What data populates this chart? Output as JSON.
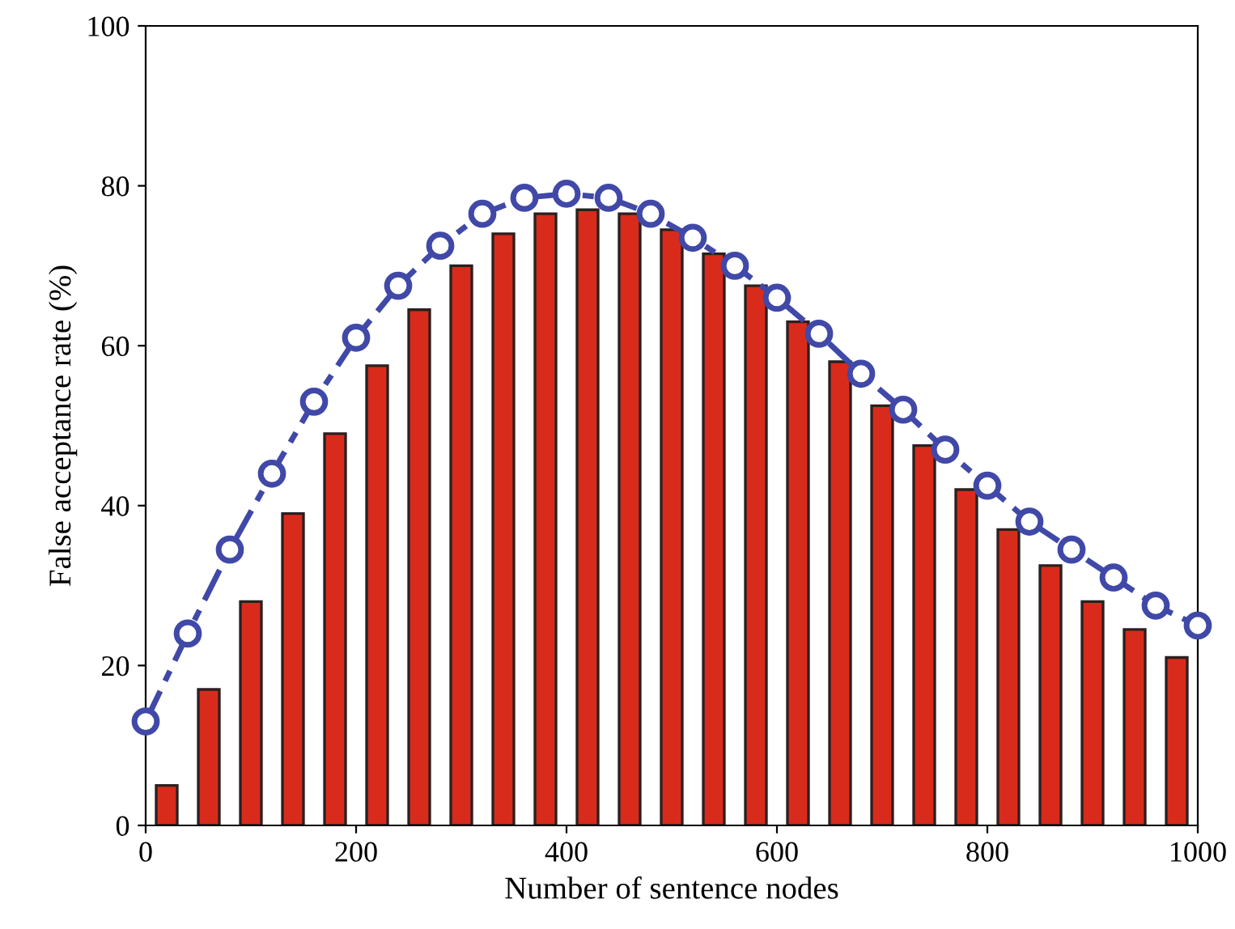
{
  "chart_data": {
    "type": "bar",
    "xlabel": "Number of sentence nodes",
    "ylabel": "False acceptance rate (%)",
    "xlim": [
      0,
      1000
    ],
    "xticks": [
      0,
      200,
      400,
      600,
      800,
      1000
    ],
    "ylim": [
      0,
      100
    ],
    "yticks": [
      0,
      20,
      40,
      60,
      80,
      100
    ],
    "grid": false,
    "legend": false,
    "series": [
      {
        "color": "#d92b1c",
        "x": [
          20,
          60,
          100,
          140,
          180,
          220,
          260,
          300,
          340,
          380,
          420,
          460,
          500,
          540,
          580,
          620,
          660,
          700,
          740,
          780,
          820,
          860,
          900,
          940,
          980
        ],
        "values": [
          5,
          17,
          28,
          39,
          49,
          57.5,
          64.5,
          70,
          74,
          76.5,
          77,
          76.5,
          74.5,
          71.5,
          67.5,
          63,
          58,
          52.5,
          47.5,
          42,
          37,
          32.5,
          28,
          24.5,
          21
        ]
      },
      {
        "type": "line",
        "color": "#4048a8",
        "marker": "circle",
        "line_style": "dashed",
        "x": [
          0,
          40,
          80,
          120,
          160,
          200,
          240,
          280,
          320,
          360,
          400,
          440,
          480,
          520,
          560,
          600,
          640,
          680,
          720,
          760,
          800,
          840,
          880,
          920,
          960,
          1000
        ],
        "values": [
          13,
          24,
          34.5,
          44,
          53,
          61,
          67.5,
          72.5,
          76.5,
          78.5,
          79,
          78.5,
          76.5,
          73.5,
          70,
          66,
          61.5,
          56.5,
          52,
          47,
          42.5,
          38,
          34.5,
          31,
          27.5,
          25
        ]
      }
    ]
  }
}
